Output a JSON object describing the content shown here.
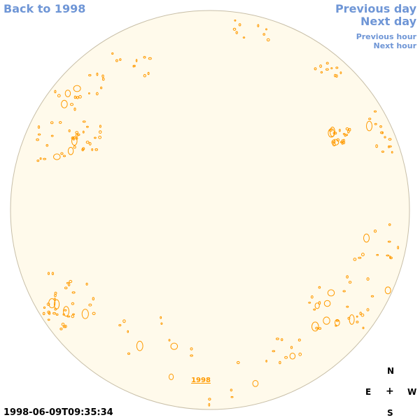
{
  "nav": {
    "back": "Back to 1998",
    "previous_day": "Previous day",
    "next_day": "Next day",
    "previous_hour": "Previous hour",
    "next_hour": "Next hour"
  },
  "disk": {
    "year_label": "1998",
    "fill_color": "#fffaeb",
    "border_color": "#c8bfa8",
    "contour_color": "#ff9a00"
  },
  "compass": {
    "north": "N",
    "east": "E",
    "center": "+",
    "west": "W",
    "south": "S"
  },
  "timestamp": "1998-06-09T09:35:34"
}
